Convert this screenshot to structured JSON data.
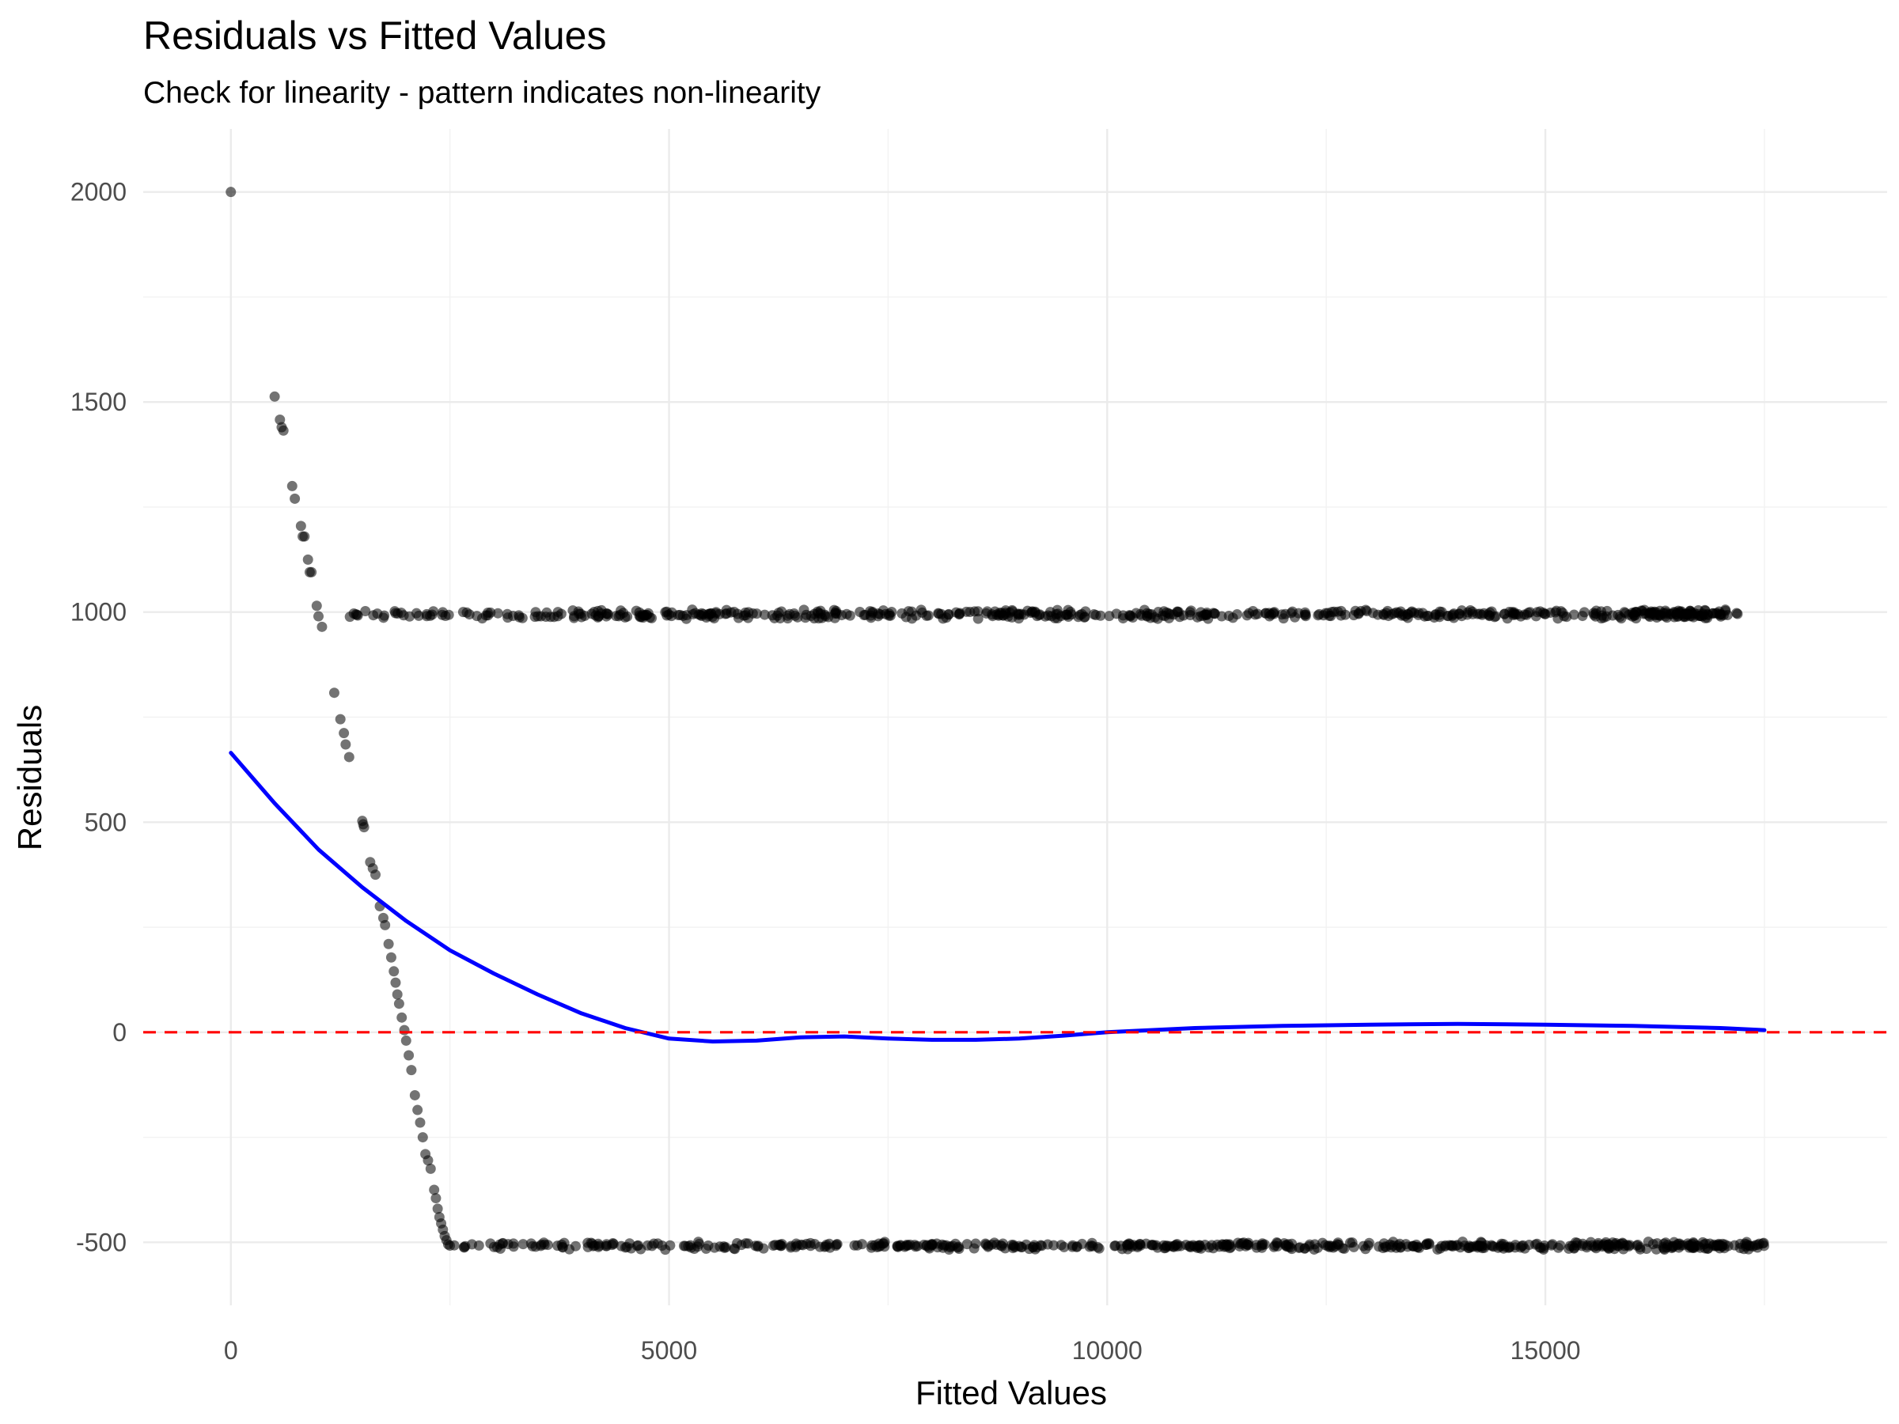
{
  "chart_data": {
    "type": "scatter",
    "title": "Residuals vs Fitted Values",
    "subtitle": "Check for linearity - pattern indicates non-linearity",
    "xlabel": "Fitted Values",
    "ylabel": "Residuals",
    "xlim": [
      -1000,
      18900
    ],
    "ylim": [
      -650,
      2150
    ],
    "x_ticks": [
      0,
      5000,
      10000,
      15000
    ],
    "x_tick_labels": [
      "0",
      "5000",
      "10000",
      "15000"
    ],
    "y_ticks": [
      -500,
      0,
      500,
      1000,
      1500,
      2000
    ],
    "y_tick_labels": [
      "-500",
      "0",
      "500",
      "1000",
      "1500",
      "2000"
    ],
    "grid": true,
    "legend": "none",
    "colors": {
      "points": "#000000",
      "smooth": "#0000ff",
      "reference": "#ff0000"
    },
    "series": [
      {
        "kind": "points",
        "opacity": 0.55,
        "segments": [
          {
            "description": "isolated point",
            "points": [
              [
                0,
                2000
              ]
            ]
          },
          {
            "description": "steep descending band",
            "points": [
              [
                500,
                1513
              ],
              [
                560,
                1458
              ],
              [
                580,
                1440
              ],
              [
                600,
                1432
              ],
              [
                700,
                1300
              ],
              [
                730,
                1270
              ],
              [
                800,
                1205
              ],
              [
                820,
                1180
              ],
              [
                840,
                1180
              ],
              [
                880,
                1125
              ],
              [
                900,
                1095
              ],
              [
                920,
                1095
              ],
              [
                980,
                1015
              ],
              [
                1000,
                990
              ],
              [
                1040,
                965
              ],
              [
                1180,
                808
              ],
              [
                1250,
                745
              ],
              [
                1290,
                712
              ],
              [
                1310,
                685
              ],
              [
                1350,
                655
              ],
              [
                1500,
                503
              ],
              [
                1510,
                495
              ],
              [
                1520,
                488
              ],
              [
                1590,
                405
              ],
              [
                1620,
                390
              ],
              [
                1650,
                375
              ],
              [
                1700,
                300
              ],
              [
                1740,
                272
              ],
              [
                1760,
                255
              ],
              [
                1800,
                210
              ],
              [
                1830,
                178
              ],
              [
                1860,
                145
              ],
              [
                1880,
                118
              ],
              [
                1900,
                90
              ],
              [
                1920,
                68
              ],
              [
                1950,
                35
              ],
              [
                1980,
                5
              ],
              [
                2000,
                -20
              ],
              [
                2030,
                -55
              ],
              [
                2060,
                -90
              ],
              [
                2100,
                -150
              ],
              [
                2130,
                -185
              ],
              [
                2160,
                -215
              ],
              [
                2190,
                -250
              ],
              [
                2220,
                -290
              ],
              [
                2250,
                -305
              ],
              [
                2280,
                -325
              ],
              [
                2320,
                -375
              ],
              [
                2340,
                -395
              ],
              [
                2360,
                -420
              ],
              [
                2380,
                -440
              ],
              [
                2400,
                -455
              ],
              [
                2420,
                -470
              ],
              [
                2440,
                -485
              ],
              [
                2460,
                -495
              ],
              [
                2480,
                -505
              ],
              [
                2500,
                -508
              ]
            ]
          },
          {
            "description": "dense horizontal band near 1000",
            "x_range": [
              1300,
              17200
            ],
            "y_center": 995,
            "y_spread": 12
          },
          {
            "description": "dense horizontal band near -500",
            "x_range": [
              2500,
              17500
            ],
            "y_center": -508,
            "y_spread": 10
          }
        ]
      },
      {
        "kind": "smooth_line",
        "x": [
          0,
          500,
          1000,
          1500,
          2000,
          2500,
          3000,
          3500,
          4000,
          4500,
          5000,
          5500,
          6000,
          6500,
          7000,
          7500,
          8000,
          8500,
          9000,
          9500,
          10000,
          11000,
          12000,
          13000,
          14000,
          15000,
          16000,
          17000,
          17500
        ],
        "y": [
          665,
          545,
          435,
          345,
          265,
          195,
          140,
          90,
          45,
          10,
          -15,
          -22,
          -20,
          -12,
          -10,
          -15,
          -18,
          -18,
          -15,
          -8,
          0,
          10,
          15,
          18,
          20,
          18,
          15,
          10,
          5
        ]
      },
      {
        "kind": "reference_line",
        "y": 0,
        "style": "dashed"
      }
    ]
  }
}
